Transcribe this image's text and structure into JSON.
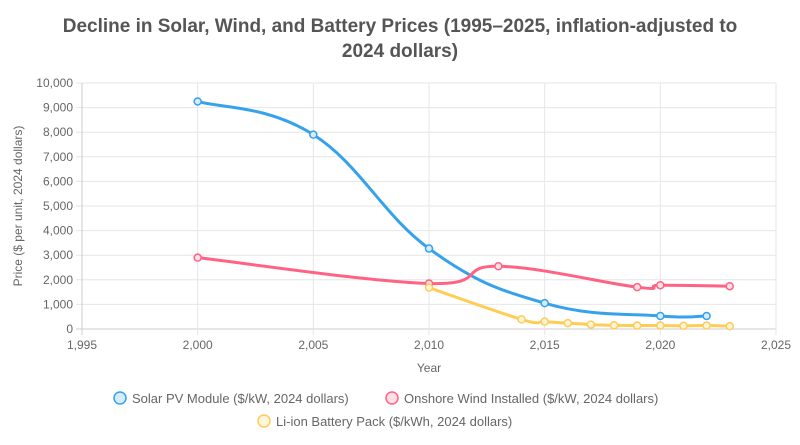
{
  "chart_data": {
    "type": "line",
    "title": "Decline in Solar, Wind, and Battery Prices (1995–2025, inflation-adjusted to 2024 dollars)",
    "title_lines": [
      "Decline in Solar, Wind, and Battery Prices (1995–2025, inflation-adjusted to",
      "2024 dollars)"
    ],
    "xlabel": "Year",
    "ylabel": "Price ($ per unit, 2024 dollars)",
    "xlim": [
      1995,
      2025
    ],
    "ylim": [
      0,
      10000
    ],
    "xticks": [
      "1,995",
      "2,000",
      "2,005",
      "2,010",
      "2,015",
      "2,020",
      "2,025"
    ],
    "yticks": [
      "0",
      "1,000",
      "2,000",
      "3,000",
      "4,000",
      "5,000",
      "6,000",
      "7,000",
      "8,000",
      "9,000",
      "10,000"
    ],
    "grid": true,
    "legend_position": "bottom",
    "series": [
      {
        "name": "Solar PV Module ($/kW, 2024 dollars)",
        "color": "#36a2eb",
        "fill": "#d7ecfb",
        "points": [
          [
            2000,
            9250
          ],
          [
            2005,
            7900
          ],
          [
            2010,
            3270
          ],
          [
            2015,
            1050
          ],
          [
            2020,
            530
          ],
          [
            2022,
            530
          ]
        ]
      },
      {
        "name": "Onshore Wind Installed ($/kW, 2024 dollars)",
        "color": "#ff6384",
        "fill": "#ffe0e6",
        "points": [
          [
            2000,
            2900
          ],
          [
            2010,
            1850
          ],
          [
            2013,
            2550
          ],
          [
            2019,
            1700
          ],
          [
            2020,
            1780
          ],
          [
            2023,
            1740
          ]
        ]
      },
      {
        "name": "Li-ion Battery Pack ($/kWh, 2024 dollars)",
        "color": "#ffcd56",
        "fill": "#fff5dd",
        "points": [
          [
            2010,
            1680
          ],
          [
            2014,
            390
          ],
          [
            2015,
            300
          ],
          [
            2016,
            240
          ],
          [
            2017,
            180
          ],
          [
            2018,
            150
          ],
          [
            2019,
            140
          ],
          [
            2020,
            140
          ],
          [
            2021,
            130
          ],
          [
            2022,
            140
          ],
          [
            2023,
            115
          ]
        ]
      }
    ]
  }
}
